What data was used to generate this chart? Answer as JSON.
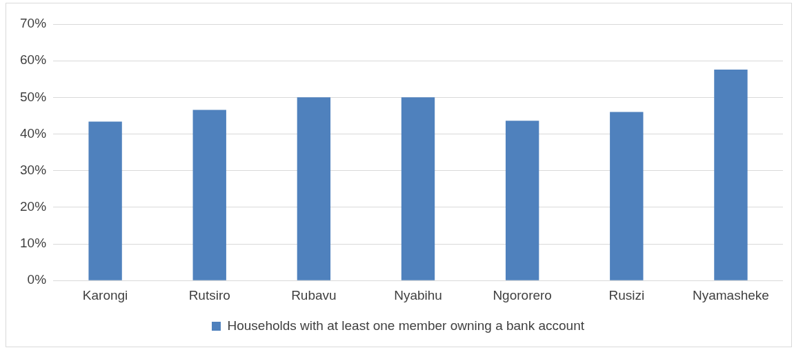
{
  "chart_data": {
    "type": "bar",
    "categories": [
      "Karongi",
      "Rutsiro",
      "Rubavu",
      "Nyabihu",
      "Ngororero",
      "Rusizi",
      "Nyamasheke"
    ],
    "series": [
      {
        "name": "Households with at least one member owning a bank account",
        "color": "#4f81bd",
        "values": [
          43.4,
          46.6,
          50,
          50,
          43.6,
          46,
          57.6
        ]
      }
    ],
    "ylim": [
      0,
      70
    ],
    "yticks": [
      {
        "value": 0,
        "label": "0%"
      },
      {
        "value": 10,
        "label": "10%"
      },
      {
        "value": 20,
        "label": "20%"
      },
      {
        "value": 30,
        "label": "30%"
      },
      {
        "value": 40,
        "label": "40%"
      },
      {
        "value": 50,
        "label": "50%"
      },
      {
        "value": 60,
        "label": "60%"
      },
      {
        "value": 70,
        "label": "70%"
      }
    ],
    "grid": "y",
    "legend": "bottom"
  }
}
